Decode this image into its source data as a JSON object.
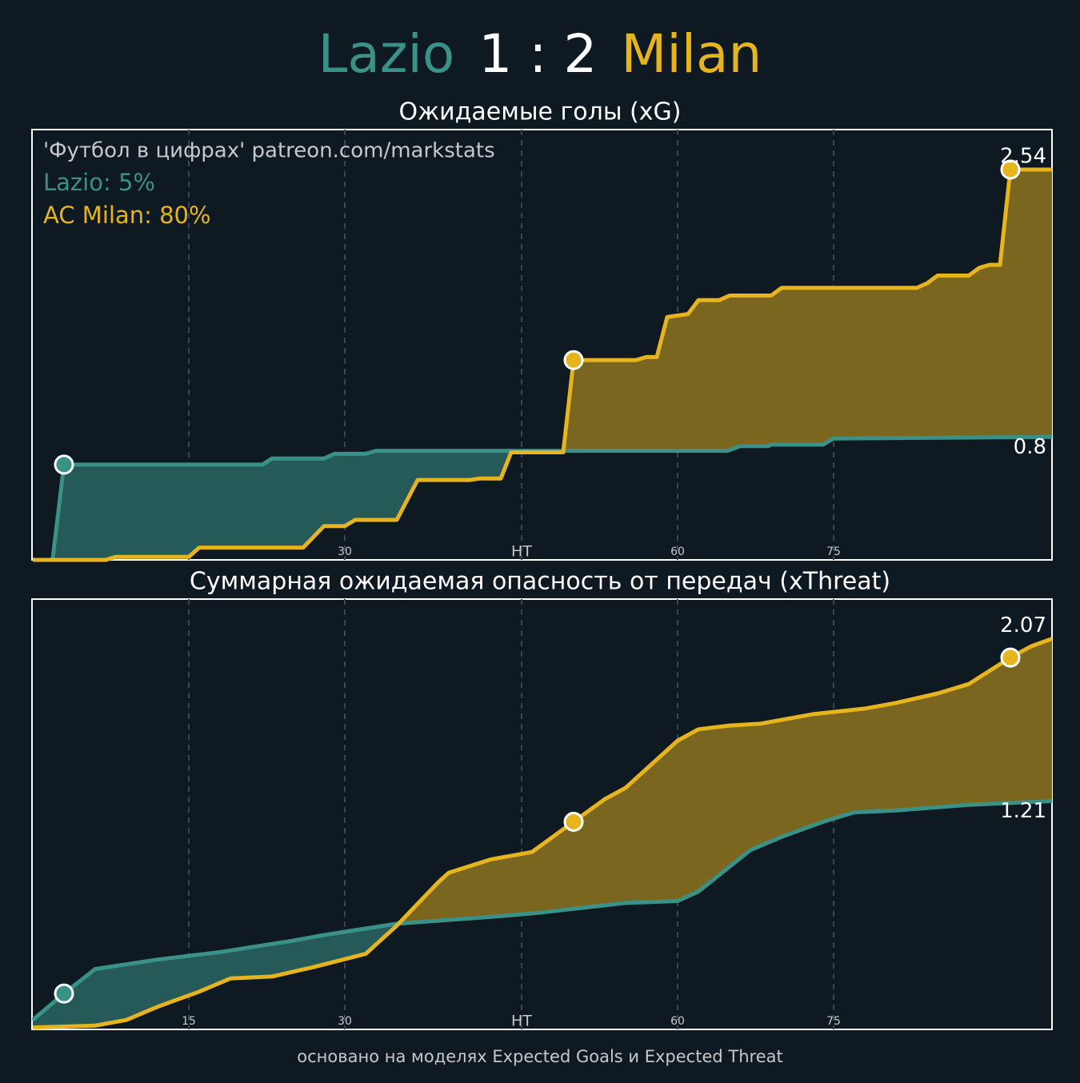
{
  "header": {
    "home": "Lazio",
    "score": "1 : 2",
    "away": "Milan"
  },
  "chart_data": [
    {
      "type": "line",
      "title": "Ожидаемые голы (xG)",
      "annotations": [
        "'Футбол в цифрах' patreon.com/markstats",
        "Lazio: 5%",
        "AC Milan: 80%"
      ],
      "xlim": [
        0,
        98
      ],
      "ylim": [
        0,
        2.8
      ],
      "xticks": [
        15,
        {
          "value": 30,
          "label": "30"
        },
        {
          "value": 47,
          "label": "HT"
        },
        {
          "value": 62,
          "label": "60"
        },
        {
          "value": 77,
          "label": "75"
        }
      ],
      "grid": true,
      "series": [
        {
          "color": "#3a9188",
          "x": [
            0,
            1.9,
            3,
            22.1,
            23,
            28,
            29,
            32,
            33,
            66.8,
            68,
            70.7,
            71,
            76,
            77,
            98
          ],
          "values": [
            0,
            0,
            0.62,
            0.62,
            0.66,
            0.66,
            0.69,
            0.69,
            0.71,
            0.71,
            0.74,
            0.74,
            0.75,
            0.75,
            0.79,
            0.8
          ],
          "goals_x": [
            3
          ],
          "goals_values": [
            0.62
          ]
        },
        {
          "color": "#e6b41e",
          "x": [
            0,
            7,
            8,
            15,
            16,
            26,
            28,
            30,
            31,
            35,
            37,
            42,
            43,
            45,
            46,
            51,
            52,
            58,
            59,
            60,
            61,
            62,
            63,
            64,
            66,
            67,
            71,
            72,
            85,
            86,
            87,
            90,
            91,
            92,
            93,
            94,
            98
          ],
          "values": [
            0,
            0,
            0.02,
            0.02,
            0.08,
            0.08,
            0.22,
            0.22,
            0.26,
            0.26,
            0.52,
            0.52,
            0.53,
            0.53,
            0.7,
            0.7,
            1.3,
            1.3,
            1.32,
            1.32,
            1.58,
            1.59,
            1.6,
            1.69,
            1.69,
            1.72,
            1.72,
            1.77,
            1.77,
            1.8,
            1.85,
            1.85,
            1.9,
            1.92,
            1.92,
            2.54,
            2.54
          ],
          "goals_x": [
            52,
            94
          ],
          "goals_values": [
            1.3,
            2.54
          ]
        }
      ]
    },
    {
      "type": "line",
      "title": "Суммарная ожидаемая опасность от передач (xThreat)",
      "xlim": [
        0,
        98
      ],
      "ylim": [
        0,
        2.28
      ],
      "xticks": [
        15,
        {
          "value": 30,
          "label": "30"
        },
        {
          "value": 47,
          "label": "HT"
        },
        {
          "value": 62,
          "label": "60"
        },
        {
          "value": 77,
          "label": "75"
        }
      ],
      "grid": true,
      "series": [
        {
          "color": "#3a9188",
          "x": [
            0,
            3,
            6,
            12,
            18,
            25,
            28,
            35,
            45,
            49,
            57,
            62,
            64,
            69,
            72,
            76,
            79,
            83,
            90,
            98
          ],
          "values": [
            0.05,
            0.19,
            0.32,
            0.37,
            0.41,
            0.47,
            0.5,
            0.56,
            0.6,
            0.62,
            0.67,
            0.68,
            0.73,
            0.95,
            1.02,
            1.1,
            1.15,
            1.16,
            1.19,
            1.21
          ],
          "goals_x": [
            3
          ],
          "goals_values": [
            0.19
          ]
        },
        {
          "color": "#e6b41e",
          "x": [
            0,
            6,
            9,
            12,
            16,
            19,
            23,
            27,
            32,
            35,
            39,
            40,
            44,
            48,
            52,
            55,
            57,
            59,
            62,
            64,
            67,
            70,
            75,
            80,
            83,
            87,
            90,
            94,
            96,
            98
          ],
          "values": [
            0.01,
            0.02,
            0.05,
            0.12,
            0.2,
            0.27,
            0.28,
            0.33,
            0.4,
            0.55,
            0.78,
            0.83,
            0.9,
            0.94,
            1.1,
            1.22,
            1.28,
            1.38,
            1.53,
            1.59,
            1.61,
            1.62,
            1.67,
            1.7,
            1.73,
            1.78,
            1.83,
            1.97,
            2.03,
            2.07
          ],
          "goals_x": [
            52,
            94
          ],
          "goals_values": [
            1.1,
            1.97
          ]
        }
      ]
    }
  ],
  "footer": "основано на моделях Expected Goals и Expected Threat"
}
